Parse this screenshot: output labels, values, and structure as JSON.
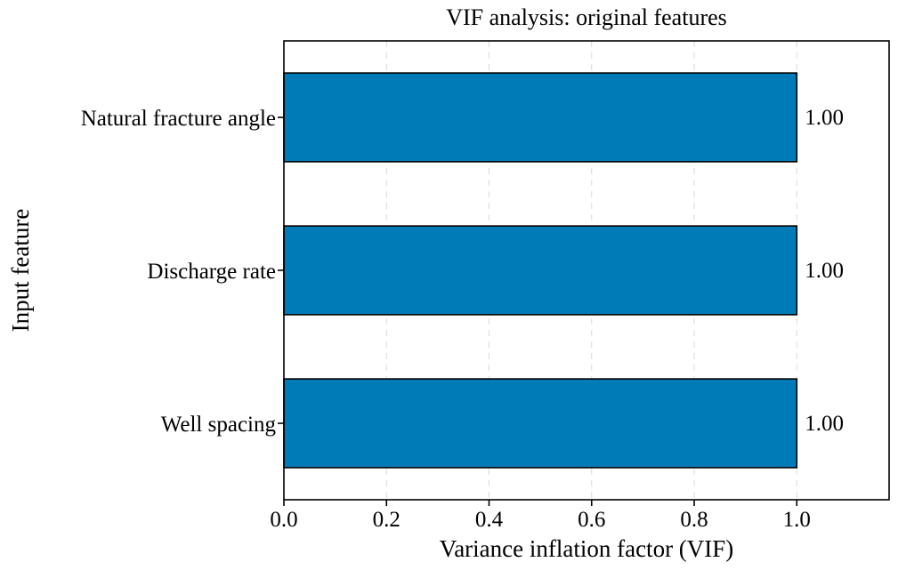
{
  "chart_data": {
    "type": "bar",
    "orientation": "horizontal",
    "title": "VIF analysis: original features",
    "xlabel": "Variance inflation factor (VIF)",
    "ylabel": "Input feature",
    "categories": [
      "Natural fracture angle",
      "Discharge rate",
      "Well spacing"
    ],
    "values": [
      1.0,
      1.0,
      1.0
    ],
    "value_labels": [
      "1.00",
      "1.00",
      "1.00"
    ],
    "xlim": [
      0,
      1.18
    ],
    "xticks": [
      0.0,
      0.2,
      0.4,
      0.6,
      0.8,
      1.0
    ],
    "xtick_labels": [
      "0.0",
      "0.2",
      "0.4",
      "0.6",
      "0.8",
      "1.0"
    ],
    "grid": "vertical dashed",
    "bar_color": "#007bb8",
    "legend": "none"
  }
}
